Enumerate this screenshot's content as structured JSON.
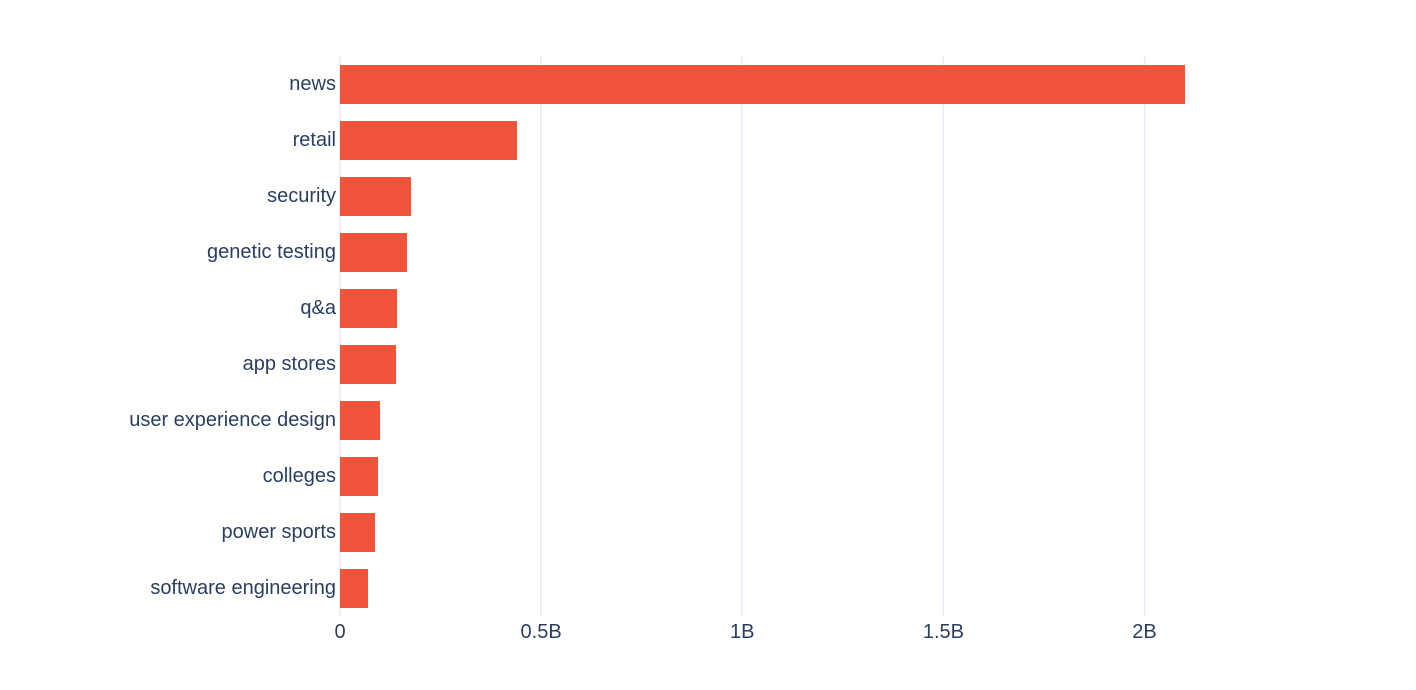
{
  "chart": {
    "bar_color": "#F0553C",
    "label_color": "#2A3F5F",
    "grid_color": "#EBF0F8",
    "zero_line_color": "#EBF0F8",
    "background_color": "#FFFFFF"
  },
  "chart_data": {
    "type": "bar",
    "orientation": "horizontal",
    "title": "",
    "xlabel": "",
    "ylabel": "",
    "categories": [
      "news",
      "retail",
      "security",
      "genetic testing",
      "q&a",
      "app stores",
      "user experience design",
      "colleges",
      "power sports",
      "software engineering"
    ],
    "values": [
      2.1,
      0.44,
      0.177,
      0.167,
      0.142,
      0.139,
      0.1,
      0.094,
      0.086,
      0.07
    ],
    "value_unit": "billions",
    "xlim": [
      0,
      2.64
    ],
    "xticks": [
      {
        "value": 0.0,
        "label": "0"
      },
      {
        "value": 0.5,
        "label": "0.5B"
      },
      {
        "value": 1.0,
        "label": "1B"
      },
      {
        "value": 1.5,
        "label": "1.5B"
      },
      {
        "value": 2.0,
        "label": "2B"
      }
    ],
    "grid": true,
    "legend": false,
    "sort_order": "descending"
  }
}
